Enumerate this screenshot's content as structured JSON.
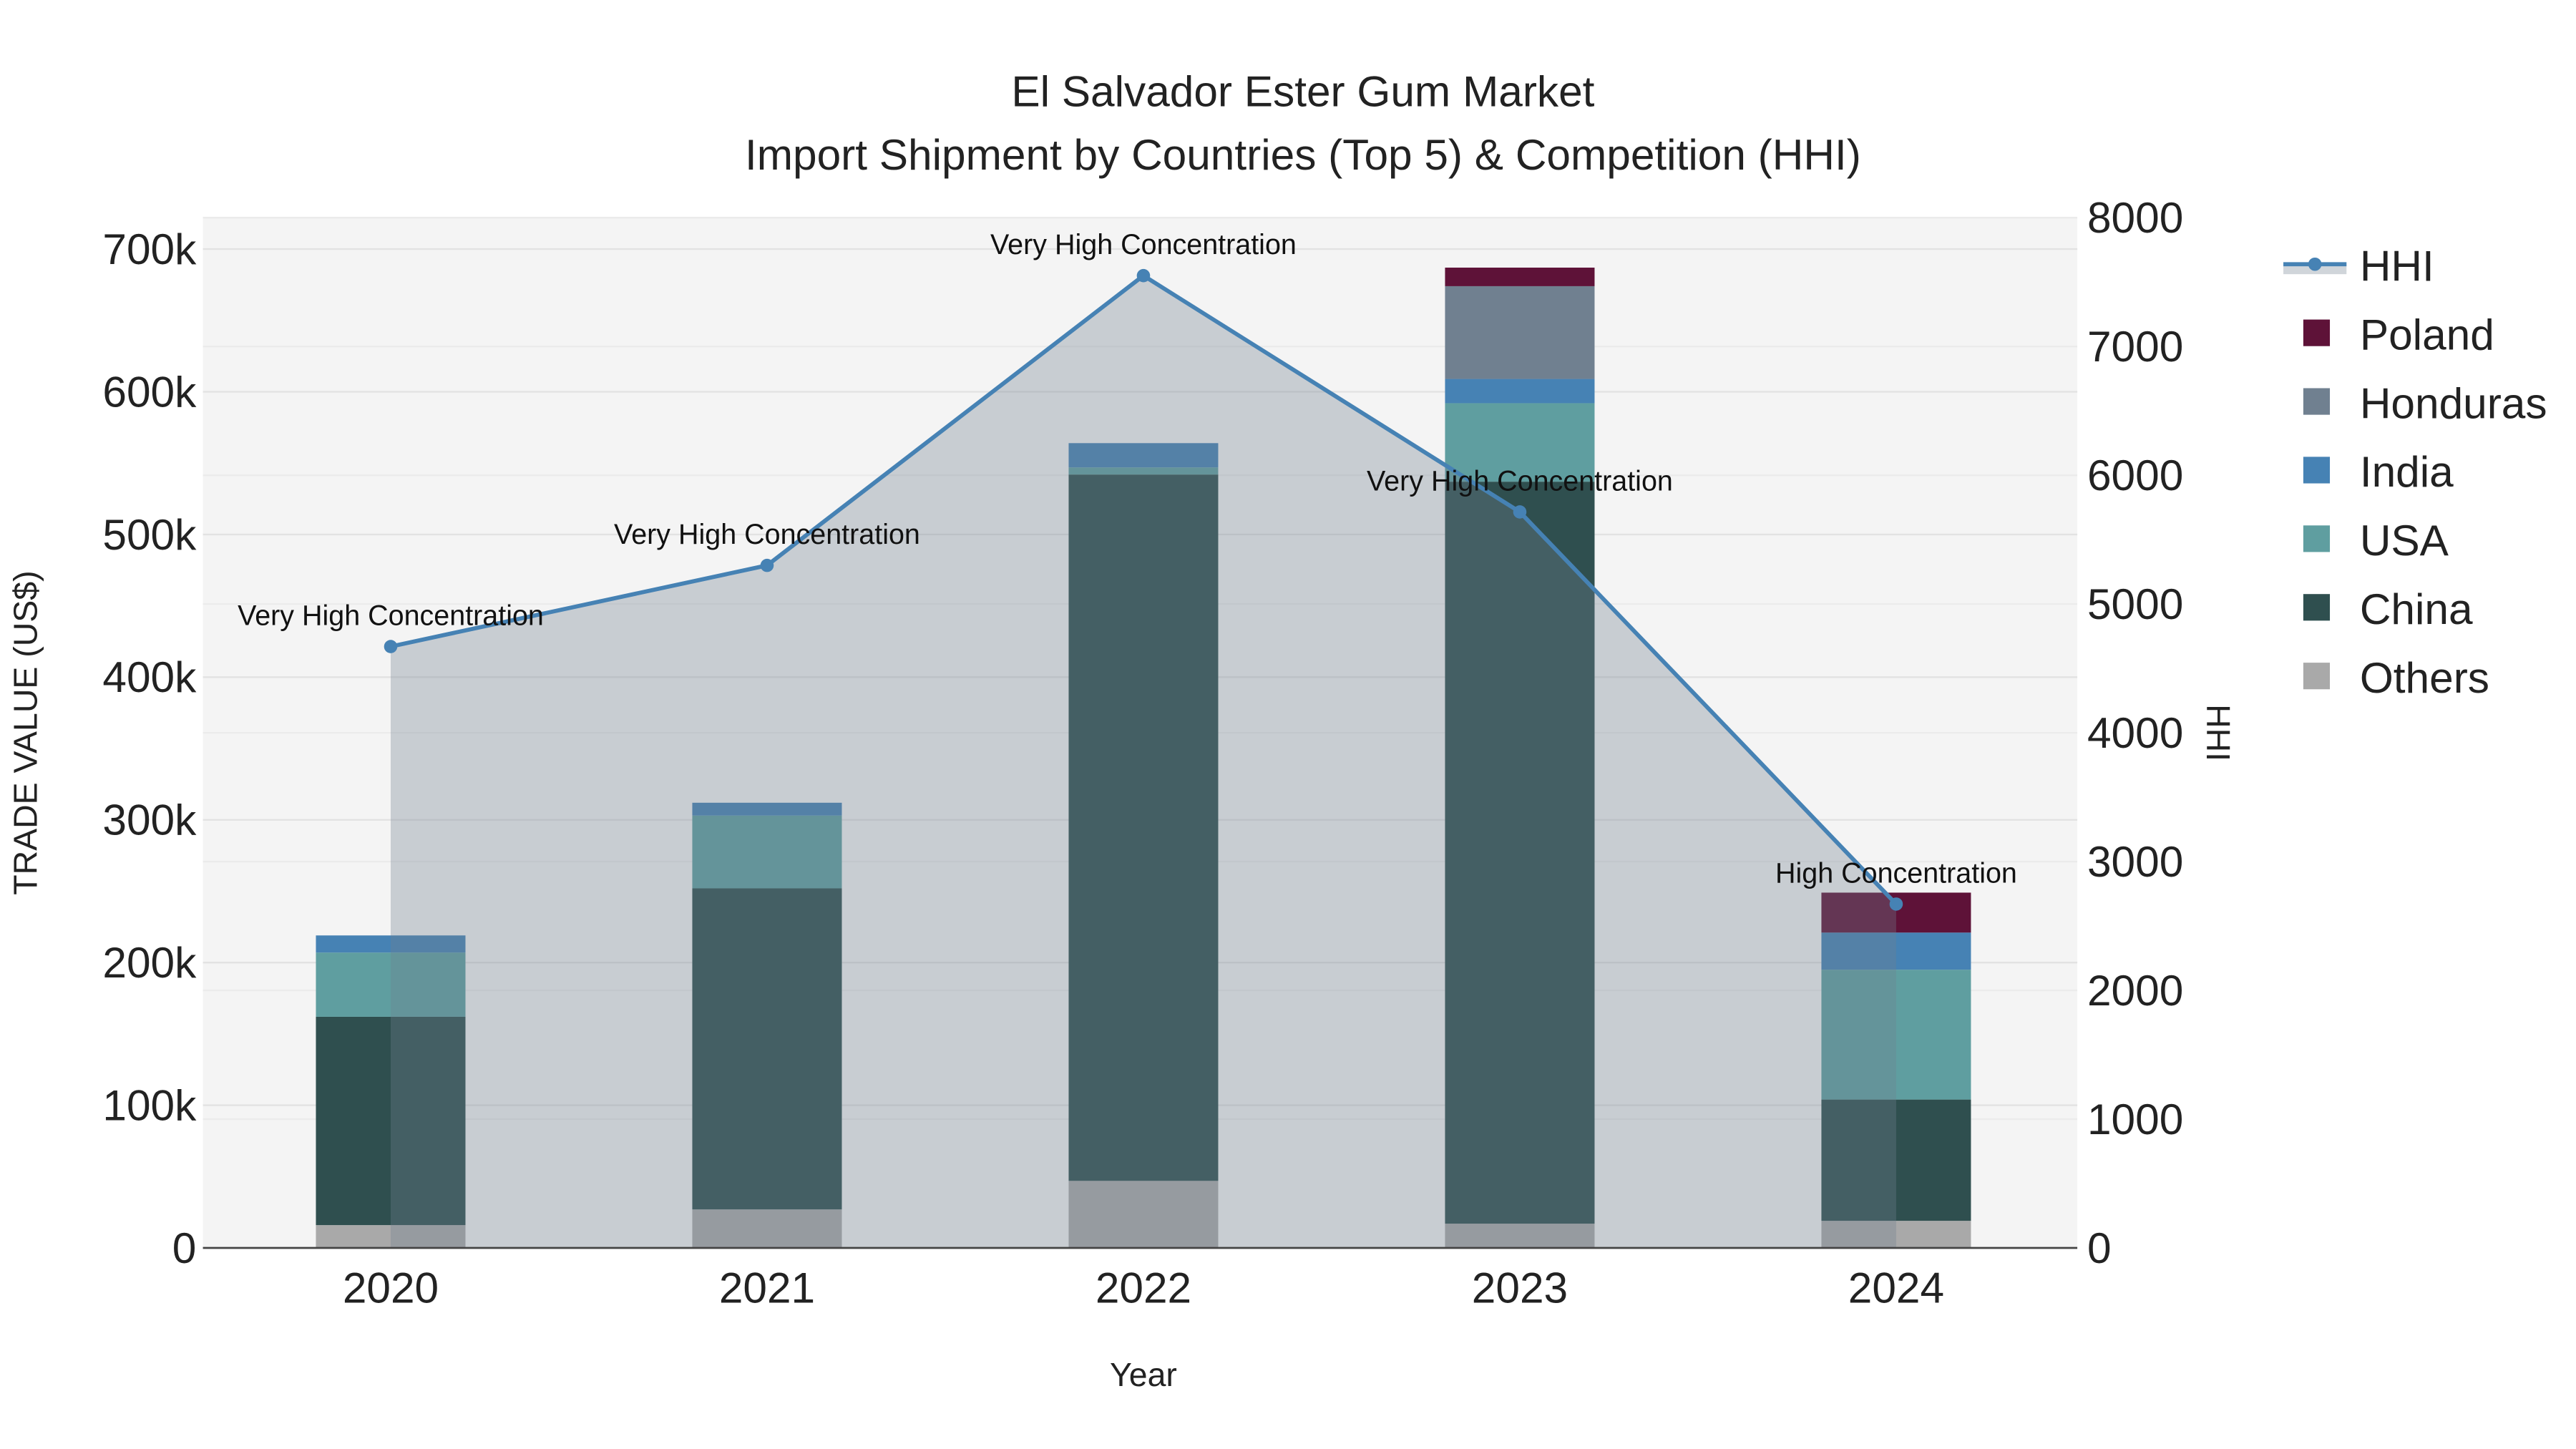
{
  "chart_data": {
    "type": "bar",
    "stacked": true,
    "title": "El Salvador Ester Gum Market",
    "subtitle": "Import Shipment by Countries (Top 5) & Competition (HHI)",
    "xlabel": "Year",
    "ylabel": "TRADE VALUE (US$)",
    "y2label": "HHI",
    "categories": [
      "2020",
      "2021",
      "2022",
      "2023",
      "2024"
    ],
    "ylim": [
      0,
      722000
    ],
    "yticks": [
      0,
      100000,
      200000,
      300000,
      400000,
      500000,
      600000,
      700000
    ],
    "ytick_labels": [
      "0",
      "100k",
      "200k",
      "300k",
      "400k",
      "500k",
      "600k",
      "700k"
    ],
    "y2lim": [
      0,
      8000
    ],
    "y2ticks": [
      0,
      1000,
      2000,
      3000,
      4000,
      5000,
      6000,
      7000,
      8000
    ],
    "y2tick_labels": [
      "0",
      "1000",
      "2000",
      "3000",
      "4000",
      "5000",
      "6000",
      "7000",
      "8000"
    ],
    "series": [
      {
        "name": "Others",
        "color": "#A9A9A9",
        "values": [
          16000,
          27000,
          47000,
          17000,
          19000
        ]
      },
      {
        "name": "China",
        "color": "#2F4F4F",
        "values": [
          146000,
          225000,
          495000,
          520000,
          85000
        ]
      },
      {
        "name": "USA",
        "color": "#5F9EA0",
        "values": [
          45000,
          51000,
          5000,
          55000,
          91000
        ]
      },
      {
        "name": "India",
        "color": "#4682B4",
        "values": [
          12000,
          9000,
          17000,
          17000,
          26000
        ]
      },
      {
        "name": "Honduras",
        "color": "#708090",
        "values": [
          0,
          0,
          0,
          65000,
          0
        ]
      },
      {
        "name": "Poland",
        "color": "#5E1238",
        "values": [
          0,
          0,
          0,
          13000,
          28000
        ]
      }
    ],
    "hhi": {
      "name": "HHI",
      "color": "#4682B4",
      "values": [
        4670,
        5300,
        7550,
        5715,
        2670
      ],
      "annotations": [
        "Very High Concentration",
        "Very High Concentration",
        "Very High Concentration",
        "Very High Concentration",
        "High Concentration"
      ]
    },
    "legend": {
      "placement": "right",
      "order": [
        "HHI",
        "Poland",
        "Honduras",
        "India",
        "USA",
        "China",
        "Others"
      ]
    },
    "grid": true
  }
}
